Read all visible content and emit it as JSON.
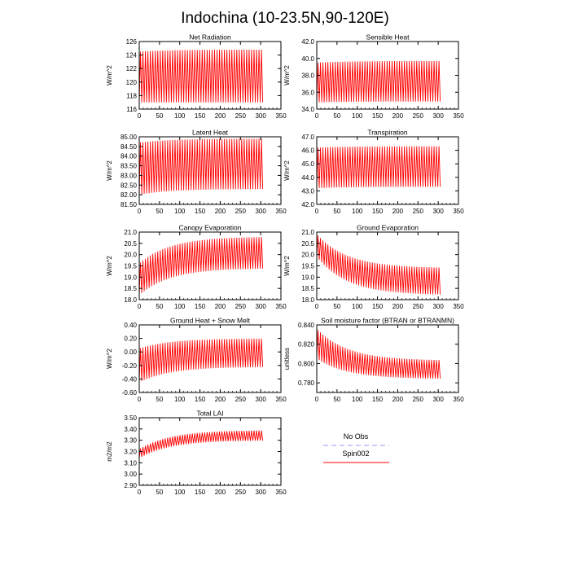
{
  "title": "Indochina (10-23.5N,90-120E)",
  "colors": {
    "series": "#ff0000",
    "obs": "#9999ee"
  },
  "legend": {
    "obs_label": "No Obs",
    "model_label": "Spin002"
  },
  "chart_data": [
    {
      "type": "line",
      "title": "Net Radiation",
      "ylabel": "W/m^2",
      "xlim": [
        0,
        350
      ],
      "xticks": [
        "0",
        "50",
        "100",
        "150",
        "200",
        "250",
        "300",
        "350"
      ],
      "ylim": [
        116,
        126
      ],
      "yticks": [
        "116",
        "118",
        "120",
        "122",
        "124",
        "126"
      ],
      "series": [
        {
          "x_end": 305,
          "cycles": 50,
          "start_lo": 117.0,
          "start_hi": 124.5,
          "end_lo": 117.0,
          "end_hi": 124.8
        }
      ]
    },
    {
      "type": "line",
      "title": "Sensible Heat",
      "ylabel": "W/m^2",
      "xlim": [
        0,
        350
      ],
      "xticks": [
        "0",
        "50",
        "100",
        "150",
        "200",
        "250",
        "300",
        "350"
      ],
      "ylim": [
        34,
        42
      ],
      "yticks": [
        "34.0",
        "36.0",
        "38.0",
        "40.0",
        "42.0"
      ],
      "series": [
        {
          "x_end": 305,
          "cycles": 50,
          "start_lo": 34.8,
          "start_hi": 39.5,
          "end_lo": 34.9,
          "end_hi": 39.7
        }
      ]
    },
    {
      "type": "line",
      "title": "Latent Heat",
      "ylabel": "W/m^2",
      "xlim": [
        0,
        350
      ],
      "xticks": [
        "0",
        "50",
        "100",
        "150",
        "200",
        "250",
        "300",
        "350"
      ],
      "ylim": [
        81.5,
        85
      ],
      "yticks": [
        "81.50",
        "82.00",
        "82.50",
        "83.00",
        "83.50",
        "84.00",
        "84.50",
        "85.00"
      ],
      "series": [
        {
          "x_end": 305,
          "cycles": 50,
          "start_lo": 82.0,
          "start_hi": 84.7,
          "end_lo": 82.3,
          "end_hi": 84.9
        }
      ]
    },
    {
      "type": "line",
      "title": "Transpiration",
      "ylabel": "W/m^2",
      "xlim": [
        0,
        350
      ],
      "xticks": [
        "0",
        "50",
        "100",
        "150",
        "200",
        "250",
        "300",
        "350"
      ],
      "ylim": [
        42,
        47
      ],
      "yticks": [
        "42.0",
        "43.0",
        "44.0",
        "45.0",
        "46.0",
        "47.0"
      ],
      "series": [
        {
          "x_end": 305,
          "cycles": 50,
          "start_lo": 43.2,
          "start_hi": 46.2,
          "end_lo": 43.3,
          "end_hi": 46.3
        }
      ]
    },
    {
      "type": "line",
      "title": "Canopy Evaporation",
      "ylabel": "W/m^2",
      "xlim": [
        0,
        350
      ],
      "xticks": [
        "0",
        "50",
        "100",
        "150",
        "200",
        "250",
        "300",
        "350"
      ],
      "ylim": [
        18,
        21
      ],
      "yticks": [
        "18.0",
        "18.5",
        "19.0",
        "19.5",
        "20.0",
        "20.5",
        "21.0"
      ],
      "series": [
        {
          "x_end": 305,
          "cycles": 50,
          "start_lo": 18.2,
          "start_hi": 19.6,
          "end_lo": 19.4,
          "end_hi": 20.8
        }
      ]
    },
    {
      "type": "line",
      "title": "Ground Evaporation",
      "ylabel": "W/m^2",
      "xlim": [
        0,
        350
      ],
      "xticks": [
        "0",
        "50",
        "100",
        "150",
        "200",
        "250",
        "300",
        "350"
      ],
      "ylim": [
        18,
        21
      ],
      "yticks": [
        "18.0",
        "18.5",
        "19.0",
        "19.5",
        "20.0",
        "20.5",
        "21.0"
      ],
      "series": [
        {
          "x_end": 305,
          "cycles": 50,
          "start_lo": 19.9,
          "start_hi": 20.9,
          "end_lo": 18.2,
          "end_hi": 19.4
        }
      ]
    },
    {
      "type": "line",
      "title": "Ground Heat + Snow Melt",
      "ylabel": "W/m^2",
      "xlim": [
        0,
        350
      ],
      "xticks": [
        "0",
        "50",
        "100",
        "150",
        "200",
        "250",
        "300",
        "350"
      ],
      "ylim": [
        -0.6,
        0.4
      ],
      "yticks": [
        "-0.60",
        "-0.40",
        "-0.20",
        "0.00",
        "0.20",
        "0.40"
      ],
      "series": [
        {
          "x_end": 305,
          "cycles": 50,
          "start_lo": -0.45,
          "start_hi": 0.05,
          "end_lo": -0.22,
          "end_hi": 0.2
        }
      ]
    },
    {
      "type": "line",
      "title": "Soil moisture factor (BTRAN or BTRANMN)",
      "ylabel": "unitless",
      "xlim": [
        0,
        350
      ],
      "xticks": [
        "0",
        "50",
        "100",
        "150",
        "200",
        "250",
        "300",
        "350"
      ],
      "ylim": [
        0.77,
        0.84
      ],
      "yticks": [
        "0.780",
        "0.800",
        "0.820",
        "0.840"
      ],
      "series": [
        {
          "x_end": 305,
          "cycles": 50,
          "start_lo": 0.805,
          "start_hi": 0.836,
          "end_lo": 0.784,
          "end_hi": 0.803
        }
      ]
    },
    {
      "type": "line",
      "title": "Total LAI",
      "ylabel": "m2/m2",
      "xlim": [
        0,
        350
      ],
      "xticks": [
        "0",
        "50",
        "100",
        "150",
        "200",
        "250",
        "300",
        "350"
      ],
      "ylim": [
        2.9,
        3.5
      ],
      "yticks": [
        "2.90",
        "3.00",
        "3.10",
        "3.20",
        "3.30",
        "3.40",
        "3.50"
      ],
      "series": [
        {
          "x_end": 305,
          "cycles": 50,
          "start_lo": 3.14,
          "start_hi": 3.22,
          "end_lo": 3.3,
          "end_hi": 3.39
        }
      ]
    }
  ]
}
